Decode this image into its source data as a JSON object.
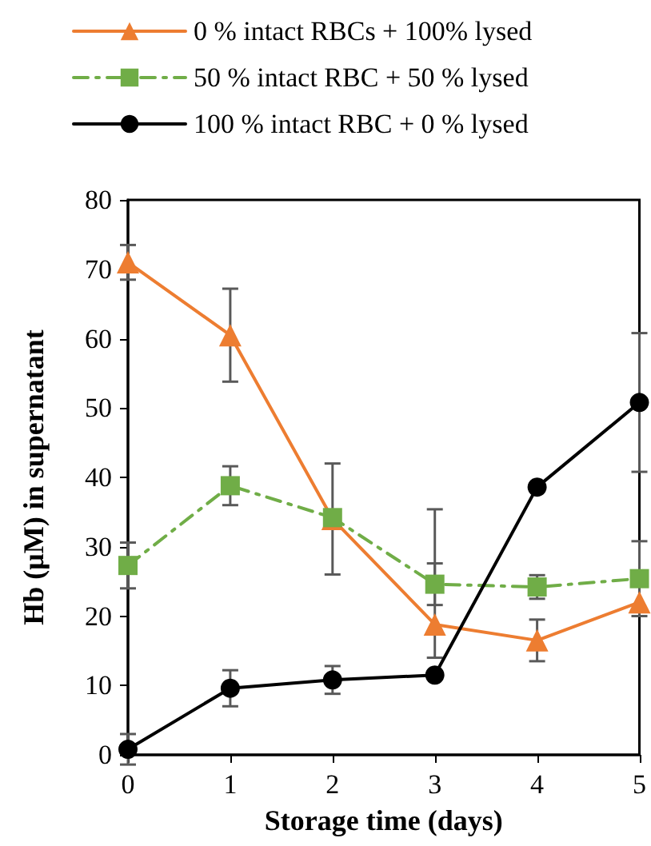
{
  "chart_data": {
    "type": "line",
    "xlabel": "Storage time (days)",
    "ylabel": "Hb (μM) in supernatant",
    "x": [
      0,
      1,
      2,
      3,
      4,
      5
    ],
    "xlim": [
      0,
      5
    ],
    "xticks": [
      0,
      1,
      2,
      3,
      4,
      5
    ],
    "ylim": [
      0,
      80
    ],
    "yticks": [
      0,
      10,
      20,
      30,
      40,
      50,
      60,
      70,
      80
    ],
    "grid": false,
    "legend": "top",
    "series": [
      {
        "name": "0 % intact RBCs + 100% lysed",
        "color": "#ed7d31",
        "marker": "triangle",
        "line_style": "solid",
        "values": [
          71,
          60.5,
          34,
          18.8,
          16.5,
          22
        ],
        "errors": [
          2.5,
          6.7,
          8,
          [
            14,
            35.4
          ],
          3,
          null
        ]
      },
      {
        "name": "50 % intact RBC + 50 % lysed",
        "color": "#70ad47",
        "marker": "square",
        "line_style": "dashed",
        "values": [
          27.3,
          38.8,
          34.2,
          24.6,
          24.2,
          25.4
        ],
        "errors": [
          3.3,
          2.8,
          null,
          3,
          1.7,
          5.4
        ]
      },
      {
        "name": "100 % intact RBC + 0 % lysed",
        "color": "#000000",
        "marker": "circle",
        "line_style": "solid",
        "values": [
          0.8,
          9.6,
          10.8,
          11.5,
          38.6,
          50.8
        ],
        "errors": [
          2.2,
          2.6,
          2,
          null,
          null,
          10
        ]
      }
    ]
  }
}
